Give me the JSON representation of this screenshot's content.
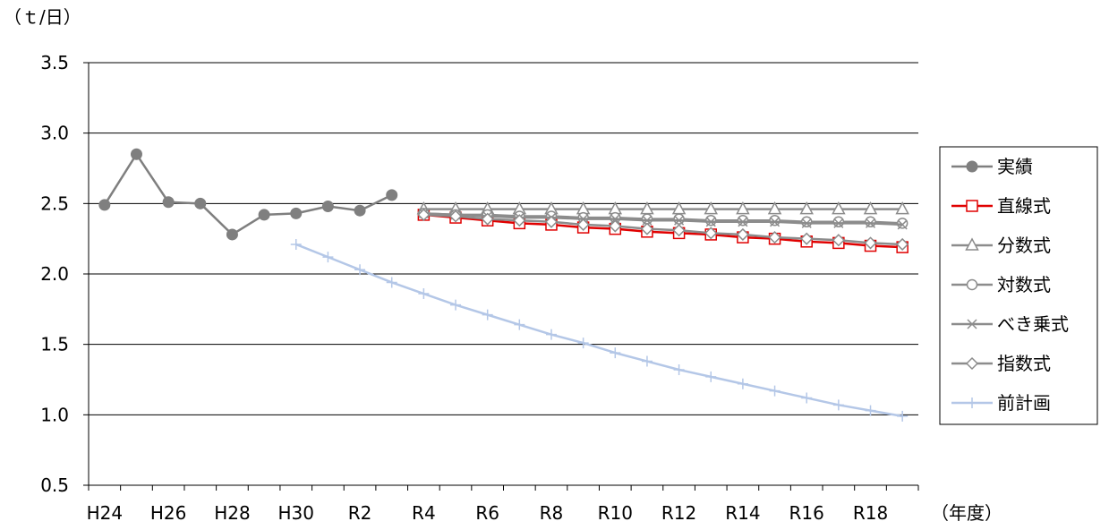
{
  "chart_data": {
    "type": "line",
    "y_unit_label": "（ｔ/日）",
    "x_unit_label": "（年度）",
    "ylim": [
      0.5,
      3.5
    ],
    "y_ticks": [
      "0.5",
      "1.0",
      "1.5",
      "2.0",
      "2.5",
      "3.0",
      "3.5"
    ],
    "grid": true,
    "legend_position": "right",
    "categories": [
      "H24",
      "H25",
      "H26",
      "H27",
      "H28",
      "H29",
      "H30",
      "R1",
      "R2",
      "R3",
      "R4",
      "R5",
      "R6",
      "R7",
      "R8",
      "R9",
      "R10",
      "R11",
      "R12",
      "R13",
      "R14",
      "R15",
      "R16",
      "R17",
      "R18",
      "R19"
    ],
    "x_tick_labels": [
      "H24",
      "H26",
      "H28",
      "H30",
      "R2",
      "R4",
      "R6",
      "R8",
      "R10",
      "R12",
      "R14",
      "R16",
      "R18"
    ],
    "series": [
      {
        "name": "実績",
        "color": "#7f7f7f",
        "marker": "circle-filled",
        "x": [
          "H24",
          "H25",
          "H26",
          "H27",
          "H28",
          "H29",
          "H30",
          "R1",
          "R2",
          "R3"
        ],
        "values": [
          2.49,
          2.85,
          2.51,
          2.5,
          2.28,
          2.42,
          2.43,
          2.48,
          2.45,
          2.56
        ]
      },
      {
        "name": "直線式",
        "color": "#e00000",
        "marker": "square",
        "x": [
          "R4",
          "R5",
          "R6",
          "R7",
          "R8",
          "R9",
          "R10",
          "R11",
          "R12",
          "R13",
          "R14",
          "R15",
          "R16",
          "R17",
          "R18",
          "R19"
        ],
        "values": [
          2.42,
          2.4,
          2.38,
          2.36,
          2.35,
          2.33,
          2.32,
          2.3,
          2.29,
          2.28,
          2.26,
          2.25,
          2.23,
          2.22,
          2.2,
          2.19
        ]
      },
      {
        "name": "分数式",
        "color": "#8c8c8c",
        "marker": "triangle",
        "x": [
          "R4",
          "R5",
          "R6",
          "R7",
          "R8",
          "R9",
          "R10",
          "R11",
          "R12",
          "R13",
          "R14",
          "R15",
          "R16",
          "R17",
          "R18",
          "R19"
        ],
        "values": [
          2.46,
          2.46,
          2.46,
          2.46,
          2.46,
          2.46,
          2.46,
          2.46,
          2.46,
          2.46,
          2.46,
          2.46,
          2.46,
          2.46,
          2.46,
          2.46
        ]
      },
      {
        "name": "対数式",
        "color": "#8c8c8c",
        "marker": "circle-open",
        "x": [
          "R4",
          "R5",
          "R6",
          "R7",
          "R8",
          "R9",
          "R10",
          "R11",
          "R12",
          "R13",
          "R14",
          "R15",
          "R16",
          "R17",
          "R18",
          "R19"
        ],
        "values": [
          2.43,
          2.42,
          2.42,
          2.41,
          2.41,
          2.4,
          2.4,
          2.39,
          2.39,
          2.38,
          2.38,
          2.38,
          2.37,
          2.37,
          2.37,
          2.36
        ]
      },
      {
        "name": "べき乗式",
        "color": "#8c8c8c",
        "marker": "x",
        "x": [
          "R4",
          "R5",
          "R6",
          "R7",
          "R8",
          "R9",
          "R10",
          "R11",
          "R12",
          "R13",
          "R14",
          "R15",
          "R16",
          "R17",
          "R18",
          "R19"
        ],
        "values": [
          2.43,
          2.42,
          2.41,
          2.4,
          2.4,
          2.39,
          2.39,
          2.38,
          2.38,
          2.37,
          2.37,
          2.37,
          2.36,
          2.36,
          2.36,
          2.35
        ]
      },
      {
        "name": "指数式",
        "color": "#8c8c8c",
        "marker": "diamond",
        "x": [
          "R4",
          "R5",
          "R6",
          "R7",
          "R8",
          "R9",
          "R10",
          "R11",
          "R12",
          "R13",
          "R14",
          "R15",
          "R16",
          "R17",
          "R18",
          "R19"
        ],
        "values": [
          2.42,
          2.41,
          2.39,
          2.38,
          2.37,
          2.35,
          2.34,
          2.32,
          2.31,
          2.29,
          2.28,
          2.26,
          2.25,
          2.24,
          2.22,
          2.21
        ]
      },
      {
        "name": "前計画",
        "color": "#b4c7e7",
        "marker": "plus",
        "x": [
          "H30",
          "R1",
          "R2",
          "R3",
          "R4",
          "R5",
          "R6",
          "R7",
          "R8",
          "R9",
          "R10",
          "R11",
          "R12",
          "R13",
          "R14",
          "R15",
          "R16",
          "R17",
          "R18",
          "R19"
        ],
        "values": [
          2.21,
          2.12,
          2.03,
          1.94,
          1.86,
          1.78,
          1.71,
          1.64,
          1.57,
          1.51,
          1.44,
          1.38,
          1.32,
          1.27,
          1.22,
          1.17,
          1.12,
          1.07,
          1.03,
          0.99
        ]
      }
    ]
  }
}
